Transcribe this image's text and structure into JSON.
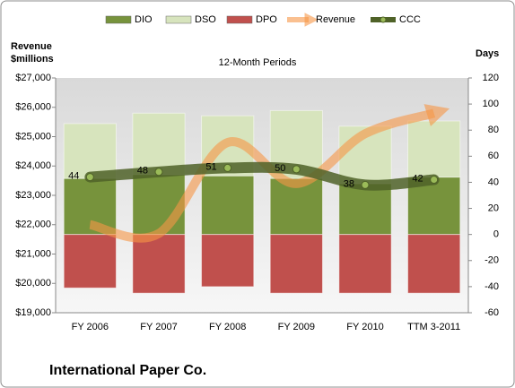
{
  "chart_data": {
    "type": "bar-line",
    "title": "12-Month Periods",
    "ylabel": [
      "Revenue",
      "$millions"
    ],
    "y2label": "Days",
    "footer": "International Paper Co.",
    "categories": [
      "FY 2006",
      "FY 2007",
      "FY 2008",
      "FY 2009",
      "FY 2010",
      "TTM 3-2011"
    ],
    "ylim": [
      19000,
      27000
    ],
    "yticks": [
      {
        "value": 19000,
        "label": "$19,000"
      },
      {
        "value": 20000,
        "label": "$20,000"
      },
      {
        "value": 21000,
        "label": "$21,000"
      },
      {
        "value": 22000,
        "label": "$22,000"
      },
      {
        "value": 23000,
        "label": "$23,000"
      },
      {
        "value": 24000,
        "label": "$24,000"
      },
      {
        "value": 25000,
        "label": "$25,000"
      },
      {
        "value": 26000,
        "label": "$26,000"
      },
      {
        "value": 27000,
        "label": "$27,000"
      }
    ],
    "y2lim": [
      -60,
      120
    ],
    "y2ticks": [
      -60,
      -40,
      -20,
      0,
      20,
      40,
      60,
      80,
      100,
      120
    ],
    "series": [
      {
        "name": "DIO",
        "type": "bar",
        "axis": "y2",
        "color": "#77933c",
        "values": [
          43,
          46,
          45,
          43,
          39,
          44
        ]
      },
      {
        "name": "DSO",
        "type": "bar",
        "axis": "y2",
        "color": "#d7e4bd",
        "values": [
          42,
          47,
          46,
          52,
          44,
          43
        ]
      },
      {
        "name": "DPO",
        "type": "bar",
        "axis": "y2",
        "color": "#c0504d",
        "values": [
          -41,
          -45,
          -40,
          -45,
          -45,
          -45
        ]
      },
      {
        "name": "Revenue",
        "type": "line",
        "color": "#f79646",
        "values": [
          22000,
          21700,
          24800,
          23400,
          25100,
          25800
        ]
      },
      {
        "name": "CCC",
        "type": "line",
        "axis": "y2",
        "color": "#4f6228",
        "values": [
          44,
          48,
          51,
          50,
          38,
          42
        ]
      }
    ]
  }
}
